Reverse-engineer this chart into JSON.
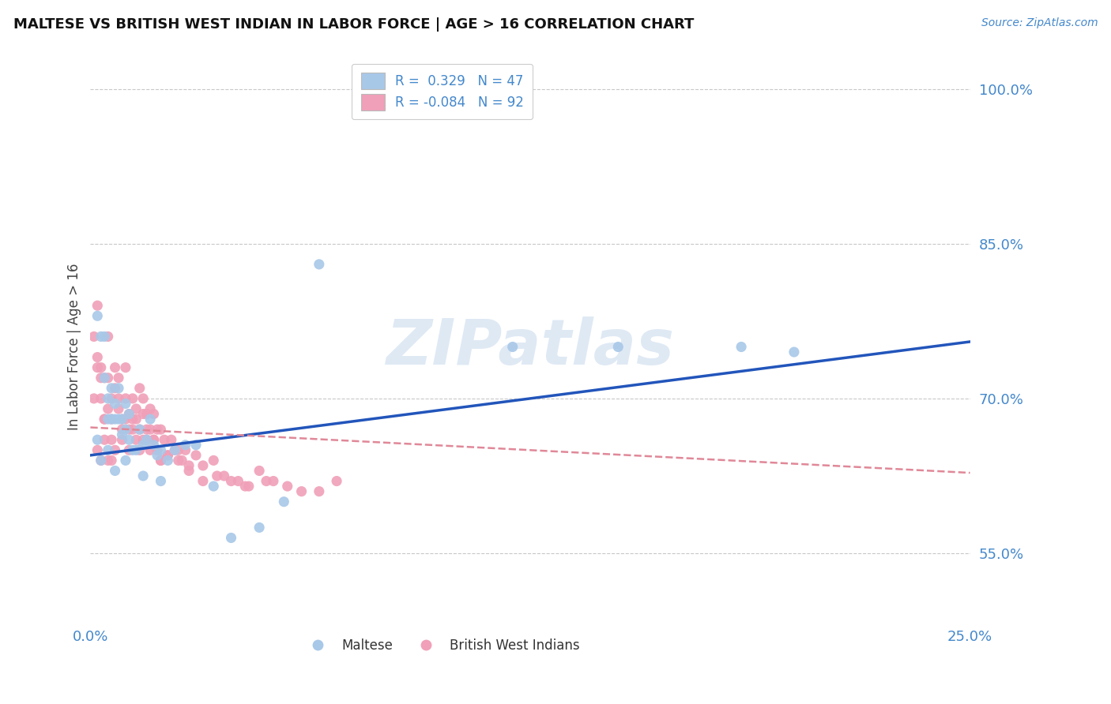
{
  "title": "MALTESE VS BRITISH WEST INDIAN IN LABOR FORCE | AGE > 16 CORRELATION CHART",
  "source_text": "Source: ZipAtlas.com",
  "ylabel": "In Labor Force | Age > 16",
  "watermark": "ZIPatlas",
  "xlim": [
    0.0,
    0.25
  ],
  "ylim": [
    0.48,
    1.02
  ],
  "yticks": [
    0.55,
    0.7,
    0.85,
    1.0
  ],
  "ytick_labels": [
    "55.0%",
    "70.0%",
    "85.0%",
    "100.0%"
  ],
  "xticks": [
    0.0,
    0.25
  ],
  "xtick_labels": [
    "0.0%",
    "25.0%"
  ],
  "background_color": "#ffffff",
  "grid_color": "#c8c8c8",
  "blue_color": "#a8c8e8",
  "pink_color": "#f0a0b8",
  "blue_line_color": "#2255bb",
  "pink_line_color": "#e08898",
  "axis_label_color": "#4488cc",
  "legend_R1": "R =  0.329",
  "legend_N1": "N = 47",
  "legend_R2": "R = -0.084",
  "legend_N2": "N = 92",
  "maltese_label": "Maltese",
  "bwi_label": "British West Indians",
  "blue_line": {
    "x0": 0.0,
    "x1": 0.25,
    "y0": 0.645,
    "y1": 0.755
  },
  "pink_line": {
    "x0": 0.0,
    "x1": 0.25,
    "y0": 0.672,
    "y1": 0.628
  },
  "maltese_x": [
    0.002,
    0.003,
    0.004,
    0.004,
    0.005,
    0.005,
    0.006,
    0.006,
    0.007,
    0.007,
    0.008,
    0.008,
    0.009,
    0.009,
    0.01,
    0.01,
    0.011,
    0.011,
    0.012,
    0.013,
    0.014,
    0.015,
    0.016,
    0.017,
    0.018,
    0.019,
    0.02,
    0.022,
    0.024,
    0.027,
    0.03,
    0.035,
    0.04,
    0.048,
    0.055,
    0.065,
    0.12,
    0.15,
    0.185,
    0.2,
    0.002,
    0.003,
    0.005,
    0.007,
    0.01,
    0.015,
    0.02
  ],
  "maltese_y": [
    0.78,
    0.76,
    0.76,
    0.72,
    0.7,
    0.68,
    0.71,
    0.68,
    0.695,
    0.68,
    0.68,
    0.71,
    0.665,
    0.68,
    0.67,
    0.695,
    0.66,
    0.685,
    0.65,
    0.65,
    0.67,
    0.655,
    0.66,
    0.68,
    0.655,
    0.645,
    0.65,
    0.64,
    0.65,
    0.655,
    0.655,
    0.615,
    0.565,
    0.575,
    0.6,
    0.83,
    0.75,
    0.75,
    0.75,
    0.745,
    0.66,
    0.64,
    0.65,
    0.63,
    0.64,
    0.625,
    0.62
  ],
  "bwi_x": [
    0.001,
    0.002,
    0.002,
    0.003,
    0.003,
    0.004,
    0.004,
    0.005,
    0.005,
    0.006,
    0.006,
    0.007,
    0.007,
    0.008,
    0.008,
    0.009,
    0.009,
    0.01,
    0.01,
    0.011,
    0.011,
    0.012,
    0.012,
    0.013,
    0.013,
    0.014,
    0.014,
    0.015,
    0.015,
    0.016,
    0.016,
    0.017,
    0.017,
    0.018,
    0.018,
    0.019,
    0.019,
    0.02,
    0.02,
    0.021,
    0.022,
    0.023,
    0.024,
    0.025,
    0.026,
    0.027,
    0.028,
    0.03,
    0.032,
    0.035,
    0.038,
    0.042,
    0.045,
    0.05,
    0.002,
    0.003,
    0.004,
    0.005,
    0.006,
    0.007,
    0.008,
    0.009,
    0.01,
    0.011,
    0.012,
    0.013,
    0.014,
    0.015,
    0.016,
    0.017,
    0.018,
    0.019,
    0.02,
    0.022,
    0.025,
    0.028,
    0.032,
    0.036,
    0.04,
    0.044,
    0.048,
    0.052,
    0.056,
    0.06,
    0.065,
    0.07,
    0.001,
    0.002,
    0.003,
    0.004,
    0.005,
    0.006
  ],
  "bwi_y": [
    0.76,
    0.73,
    0.79,
    0.73,
    0.72,
    0.72,
    0.68,
    0.76,
    0.72,
    0.7,
    0.68,
    0.71,
    0.73,
    0.7,
    0.72,
    0.68,
    0.67,
    0.7,
    0.73,
    0.67,
    0.685,
    0.7,
    0.68,
    0.68,
    0.69,
    0.67,
    0.71,
    0.685,
    0.7,
    0.66,
    0.685,
    0.67,
    0.69,
    0.685,
    0.66,
    0.67,
    0.65,
    0.67,
    0.64,
    0.66,
    0.645,
    0.66,
    0.65,
    0.65,
    0.64,
    0.65,
    0.635,
    0.645,
    0.635,
    0.64,
    0.625,
    0.62,
    0.615,
    0.62,
    0.65,
    0.64,
    0.66,
    0.64,
    0.66,
    0.65,
    0.69,
    0.66,
    0.68,
    0.65,
    0.67,
    0.66,
    0.65,
    0.66,
    0.67,
    0.65,
    0.66,
    0.65,
    0.64,
    0.645,
    0.64,
    0.63,
    0.62,
    0.625,
    0.62,
    0.615,
    0.63,
    0.62,
    0.615,
    0.61,
    0.61,
    0.62,
    0.7,
    0.74,
    0.7,
    0.68,
    0.69,
    0.64
  ]
}
